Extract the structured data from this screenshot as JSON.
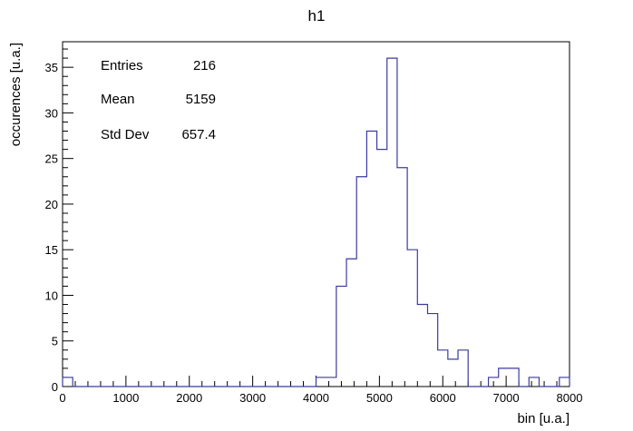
{
  "chart_data": {
    "type": "bar",
    "title": "h1",
    "xlabel": "bin [u.a.]",
    "ylabel": "occurences [u.a.]",
    "xlim": [
      0,
      8000
    ],
    "ylim": [
      0,
      37.8
    ],
    "x_ticks": [
      0,
      1000,
      2000,
      3000,
      4000,
      5000,
      6000,
      7000,
      8000
    ],
    "y_ticks": [
      0,
      5,
      10,
      15,
      20,
      25,
      30,
      35
    ],
    "bin_width": 160,
    "bin_edges_start": 0,
    "values": [
      1,
      0,
      0,
      0,
      0,
      0,
      0,
      0,
      0,
      0,
      0,
      0,
      0,
      0,
      0,
      0,
      0,
      0,
      0,
      0,
      0,
      0,
      0,
      0,
      0,
      1,
      1,
      11,
      14,
      23,
      28,
      26,
      36,
      24,
      15,
      9,
      8,
      4,
      3,
      4,
      0,
      0,
      1,
      2,
      2,
      0,
      1,
      0,
      0,
      1
    ],
    "line_color": "#3b3b9e",
    "legend": "none",
    "grid": false
  },
  "stats": {
    "rows": [
      {
        "label": "Entries",
        "value": "216"
      },
      {
        "label": "Mean",
        "value": "5159"
      },
      {
        "label": "Std Dev",
        "value": "657.4"
      }
    ]
  }
}
